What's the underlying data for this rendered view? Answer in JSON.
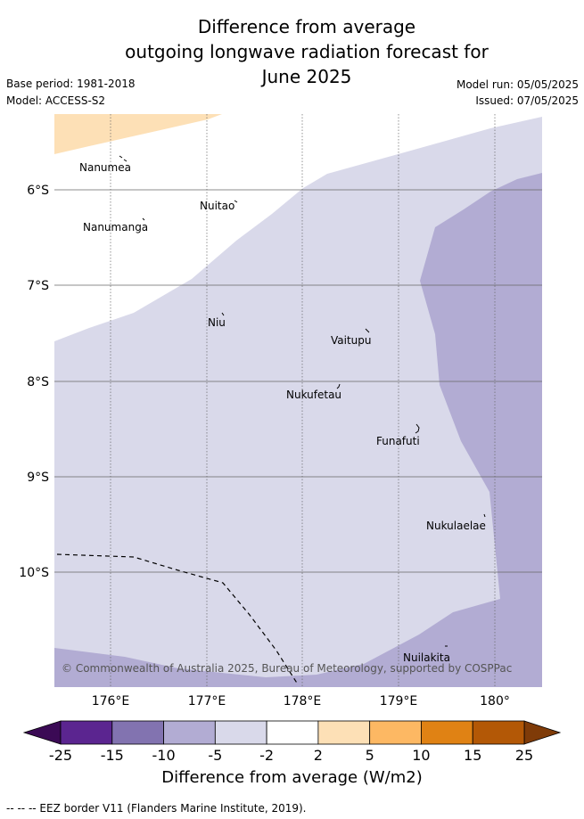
{
  "title_lines": [
    "Difference from average",
    "outgoing longwave radiation forecast for",
    "June 2025"
  ],
  "base_period": "Base period: 1981-2018",
  "model": "Model: ACCESS-S2",
  "model_run": "Model run: 05/05/2025",
  "issued": "Issued: 07/05/2025",
  "map": {
    "lat_labels": [
      "6°S",
      "7°S",
      "8°S",
      "9°S",
      "10°S"
    ],
    "lon_labels": [
      "176°E",
      "177°E",
      "178°E",
      "179°E",
      "180°"
    ],
    "islands": [
      "Nanumea",
      "Nuitao",
      "Nanumanga",
      "Niu",
      "Vaitupu",
      "Nukufetau",
      "Funafuti",
      "Nukulaelae",
      "Nuilakita"
    ],
    "copyright": "© Commonwealth of Australia 2025, Bureau of Meteorology, supported by COSPPac",
    "region_colors": {
      "above_2_to_5": "#fde0b6",
      "minus_5_to_minus_2": "#d9d9ea",
      "minus_10_to_minus_5": "#b2acd3"
    }
  },
  "colorbar": {
    "ticks": [
      "-25",
      "-15",
      "-10",
      "-5",
      "-2",
      "2",
      "5",
      "10",
      "15",
      "25"
    ],
    "colors": [
      "#5b2590",
      "#8273b0",
      "#b2acd3",
      "#d9d9ea",
      "#ffffff",
      "#fde0b6",
      "#fdb863",
      "#e08214",
      "#b35806"
    ],
    "under_color": "#3b0a55",
    "over_color": "#7f3b08",
    "label": "Difference from average (W/m2)"
  },
  "eez_note": "--  --  -- EEZ border V11 (Flanders Marine Institute, 2019)."
}
